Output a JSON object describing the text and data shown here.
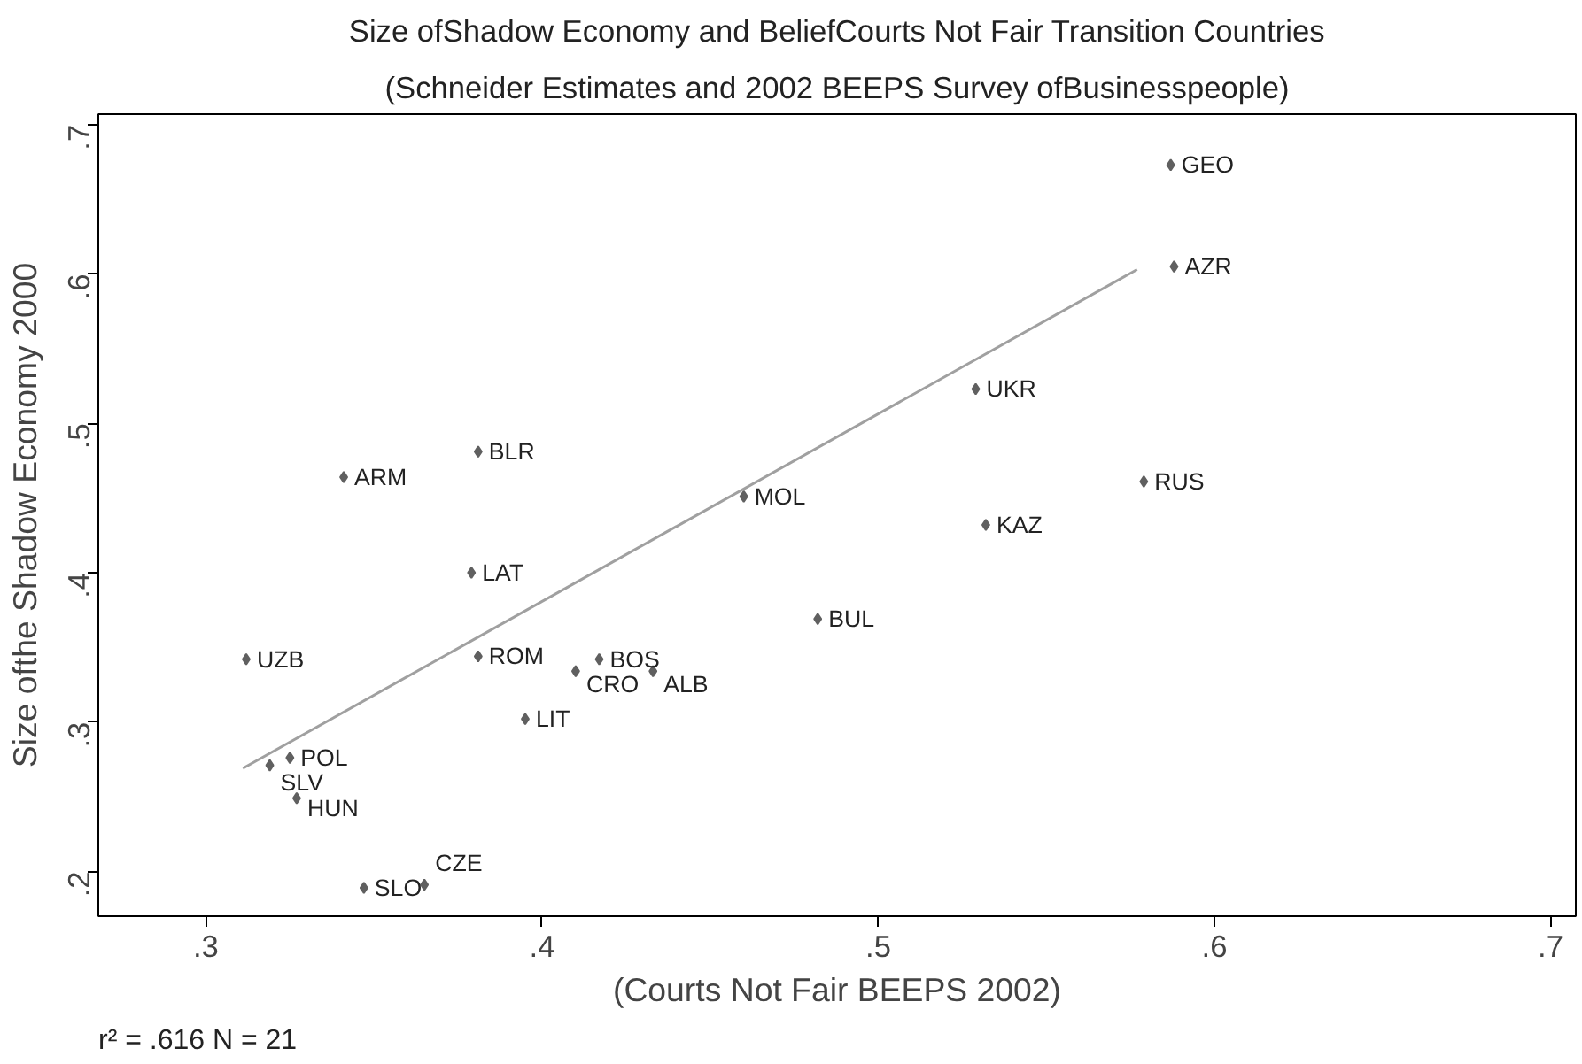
{
  "chart_data": {
    "type": "scatter",
    "title": "Size ofShadow Economy and BeliefCourts Not Fair Transition Countries",
    "subtitle": "(Schneider Estimates and 2002 BEEPS Survey ofBusinesspeople)",
    "xlabel": "(Courts Not Fair BEEPS 2002)",
    "ylabel": "Size ofthe Shadow Economy 2000",
    "xlim": [
      0.268,
      0.7075
    ],
    "ylim": [
      0.17,
      0.707
    ],
    "xticks": [
      {
        "value": 0.3,
        "label": ".3"
      },
      {
        "value": 0.4,
        "label": ".4"
      },
      {
        "value": 0.5,
        "label": ".5"
      },
      {
        "value": 0.6,
        "label": ".6"
      },
      {
        "value": 0.7,
        "label": ".7"
      }
    ],
    "yticks": [
      {
        "value": 0.2,
        "label": ".2"
      },
      {
        "value": 0.3,
        "label": ".3"
      },
      {
        "value": 0.4,
        "label": ".4"
      },
      {
        "value": 0.5,
        "label": ".5"
      },
      {
        "value": 0.6,
        "label": ".6"
      },
      {
        "value": 0.7,
        "label": ".7"
      }
    ],
    "grid": false,
    "marker": "diamond",
    "series": [
      {
        "color": "#606060",
        "x": [
          0.587,
          0.588,
          0.529,
          0.579,
          0.532,
          0.46,
          0.381,
          0.341,
          0.379,
          0.482,
          0.312,
          0.381,
          0.417,
          0.41,
          0.433,
          0.395,
          0.325,
          0.319,
          0.327,
          0.347,
          0.365
        ],
        "values": [
          0.673,
          0.605,
          0.523,
          0.461,
          0.432,
          0.451,
          0.481,
          0.464,
          0.4,
          0.369,
          0.342,
          0.344,
          0.342,
          0.334,
          0.334,
          0.302,
          0.276,
          0.271,
          0.249,
          0.189,
          0.191
        ]
      },
      {
        "type": "line",
        "color": "#a0a0a0",
        "marker": "none",
        "x": [
          0.311,
          0.577
        ],
        "values": [
          0.269,
          0.603
        ]
      }
    ],
    "annotations": [
      {
        "text": "GEO",
        "x": 0.587,
        "y": 0.673
      },
      {
        "text": "AZR",
        "x": 0.588,
        "y": 0.605
      },
      {
        "text": "UKR",
        "x": 0.529,
        "y": 0.523
      },
      {
        "text": "RUS",
        "x": 0.579,
        "y": 0.461
      },
      {
        "text": "KAZ",
        "x": 0.532,
        "y": 0.432
      },
      {
        "text": "MOL",
        "x": 0.46,
        "y": 0.451
      },
      {
        "text": "BLR",
        "x": 0.381,
        "y": 0.481
      },
      {
        "text": "ARM",
        "x": 0.341,
        "y": 0.464
      },
      {
        "text": "LAT",
        "x": 0.379,
        "y": 0.4
      },
      {
        "text": "BUL",
        "x": 0.482,
        "y": 0.369
      },
      {
        "text": "UZB",
        "x": 0.312,
        "y": 0.342
      },
      {
        "text": "ROM",
        "x": 0.381,
        "y": 0.344
      },
      {
        "text": "BOS",
        "x": 0.417,
        "y": 0.342
      },
      {
        "text": "CRO",
        "x": 0.41,
        "y": 0.334
      },
      {
        "text": "ALB",
        "x": 0.433,
        "y": 0.334
      },
      {
        "text": "LIT",
        "x": 0.395,
        "y": 0.302
      },
      {
        "text": "POL",
        "x": 0.325,
        "y": 0.276
      },
      {
        "text": "SLV",
        "x": 0.319,
        "y": 0.271
      },
      {
        "text": "HUN",
        "x": 0.327,
        "y": 0.249
      },
      {
        "text": "SLO",
        "x": 0.347,
        "y": 0.189
      },
      {
        "text": "CZE",
        "x": 0.365,
        "y": 0.191
      },
      "r² = .616 N = 21"
    ]
  }
}
